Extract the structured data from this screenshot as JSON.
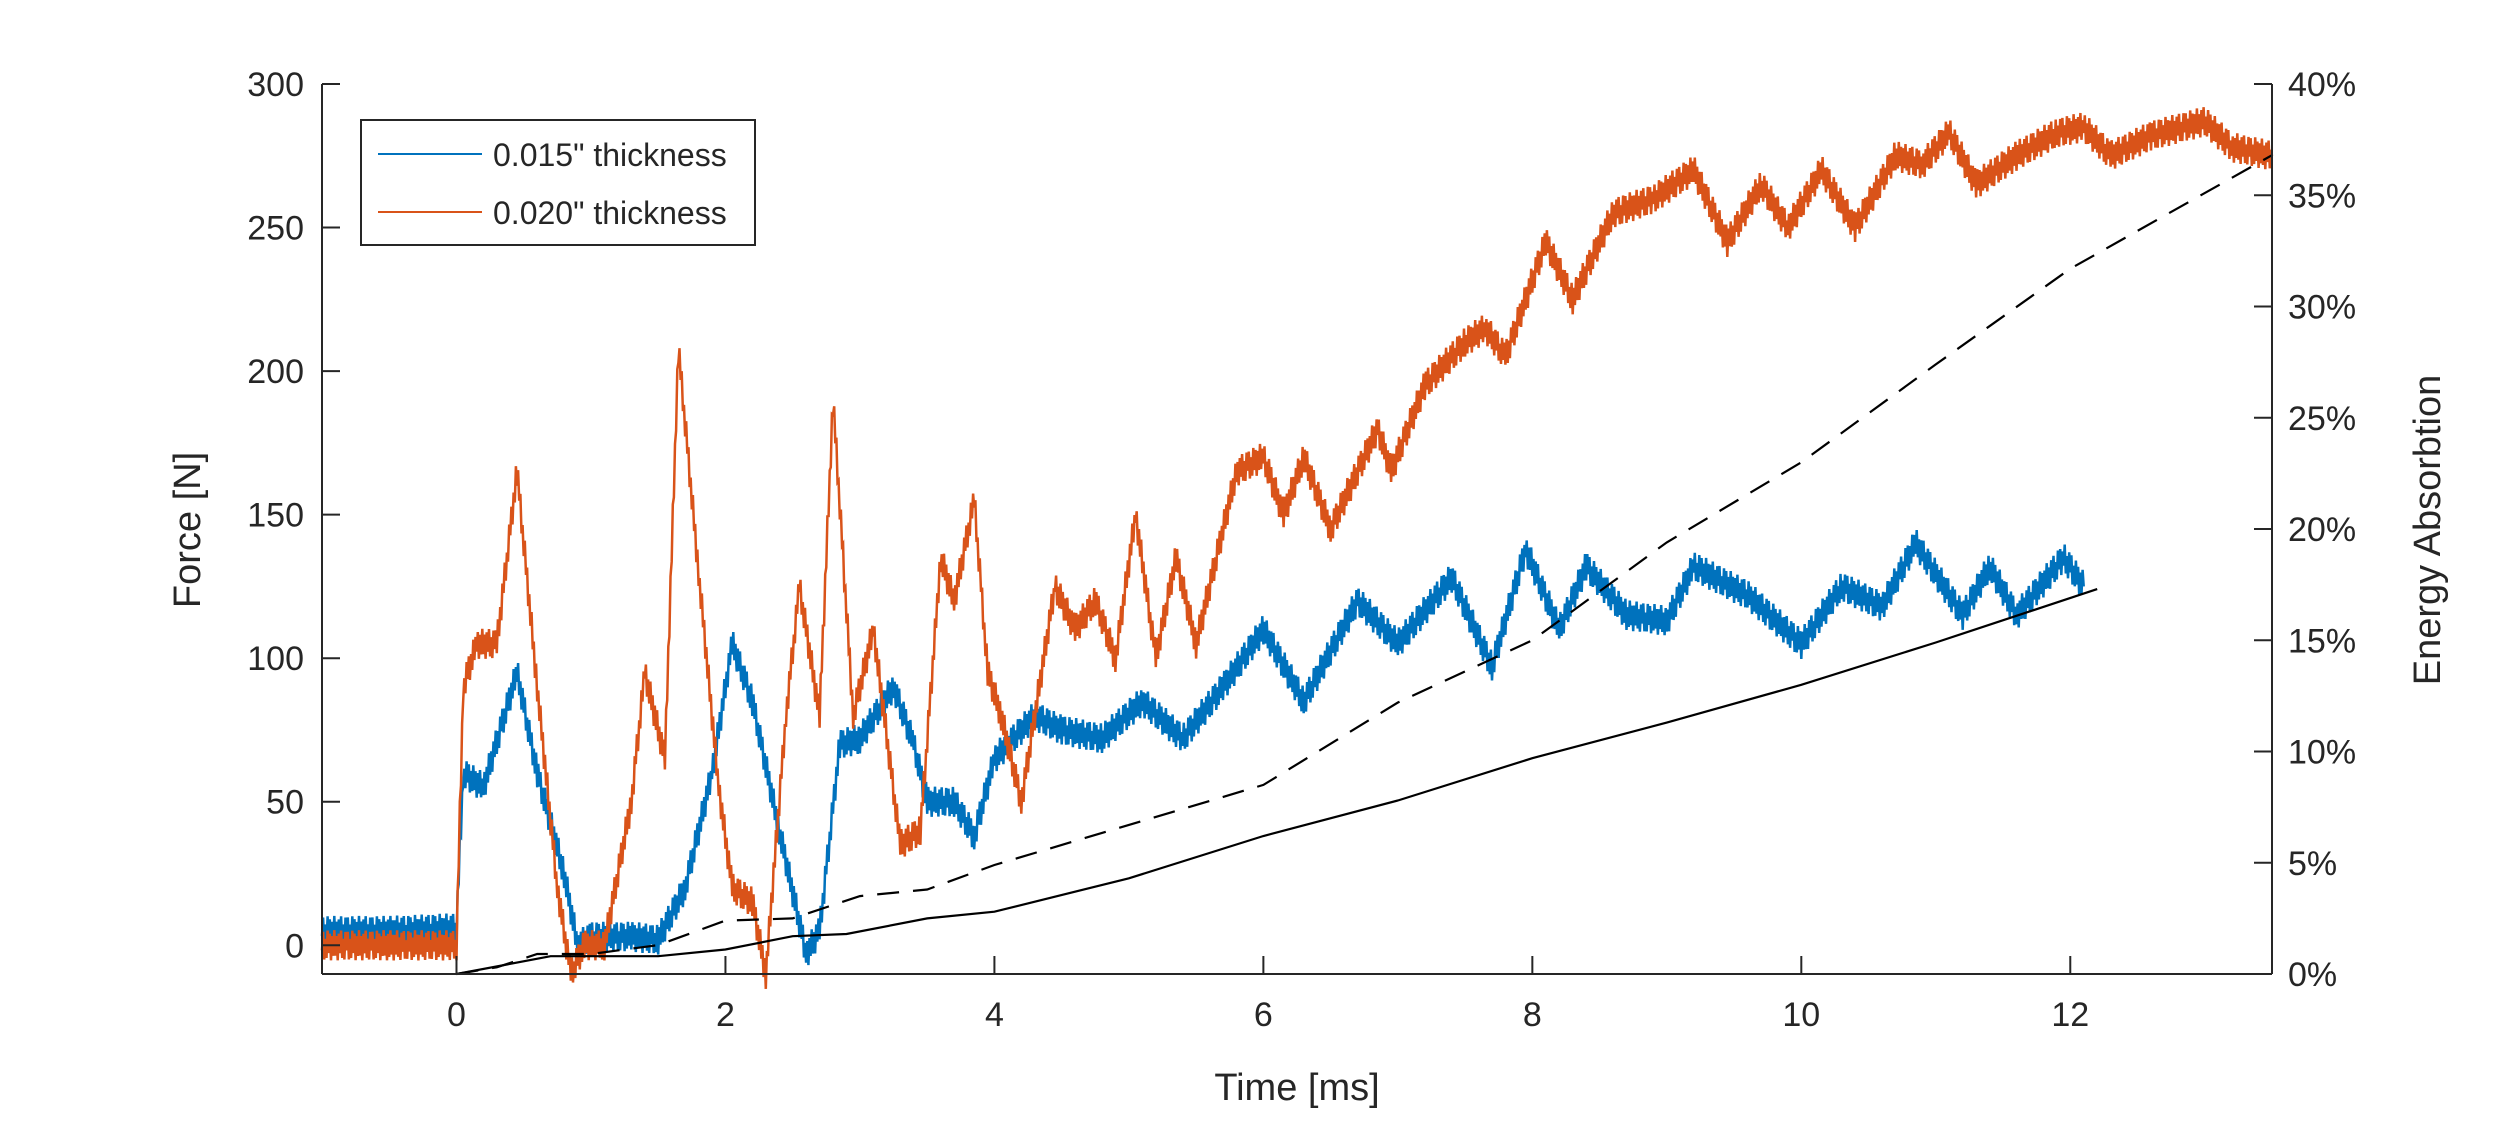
{
  "chart_data": {
    "type": "line",
    "xlabel": "Time [ms]",
    "ylabel": "Force [N]",
    "y2label": "Energy Absorbtion",
    "xlim": [
      -1,
      13.5
    ],
    "ylim": [
      -10,
      300
    ],
    "y2lim": [
      0,
      40
    ],
    "xticks": [
      0,
      2,
      4,
      6,
      8,
      10,
      12
    ],
    "yticks": [
      0,
      50,
      100,
      150,
      200,
      250,
      300
    ],
    "y2ticks": [
      "0%",
      "5%",
      "10%",
      "15%",
      "20%",
      "25%",
      "30%",
      "35%",
      "40%"
    ],
    "grid": false,
    "legend_placement": "top-left",
    "series": [
      {
        "name": "0.015\" thickness",
        "axis": "left",
        "color": "#0072BD",
        "style": "solid",
        "x": [
          -1,
          -0.5,
          0,
          0.05,
          0.2,
          0.45,
          0.6,
          0.8,
          0.9,
          1.0,
          1.3,
          1.5,
          1.7,
          1.9,
          2.05,
          2.2,
          2.4,
          2.6,
          2.7,
          2.85,
          3.0,
          3.25,
          3.4,
          3.5,
          3.7,
          3.85,
          4.0,
          4.3,
          4.5,
          4.8,
          5.1,
          5.4,
          5.7,
          6.0,
          6.3,
          6.7,
          7.0,
          7.4,
          7.7,
          7.95,
          8.2,
          8.4,
          8.7,
          9.0,
          9.2,
          9.6,
          10.0,
          10.3,
          10.6,
          10.85,
          11.2,
          11.4,
          11.6,
          11.95,
          12.1
        ],
        "y": [
          5,
          5,
          6,
          60,
          55,
          95,
          60,
          25,
          0,
          3,
          3,
          2,
          20,
          60,
          105,
          85,
          40,
          -3,
          5,
          70,
          72,
          90,
          70,
          50,
          50,
          38,
          65,
          80,
          75,
          72,
          85,
          72,
          90,
          110,
          85,
          120,
          105,
          128,
          97,
          138,
          110,
          132,
          115,
          113,
          132,
          122,
          105,
          125,
          118,
          140,
          115,
          132,
          115,
          135,
          125
        ]
      },
      {
        "name": "0.020\" thickness",
        "axis": "left",
        "color": "#D95319",
        "style": "solid",
        "x": [
          -1,
          -0.5,
          0,
          0.05,
          0.15,
          0.3,
          0.45,
          0.6,
          0.75,
          0.85,
          0.95,
          1.1,
          1.3,
          1.4,
          1.55,
          1.65,
          1.8,
          1.95,
          2.05,
          2.2,
          2.3,
          2.45,
          2.55,
          2.7,
          2.8,
          2.95,
          3.1,
          3.3,
          3.45,
          3.6,
          3.7,
          3.85,
          3.95,
          4.05,
          4.2,
          4.45,
          4.6,
          4.75,
          4.9,
          5.05,
          5.2,
          5.35,
          5.5,
          5.8,
          6.0,
          6.15,
          6.3,
          6.5,
          6.85,
          6.95,
          7.2,
          7.5,
          7.65,
          7.8,
          8.1,
          8.3,
          8.6,
          8.9,
          9.2,
          9.45,
          9.7,
          9.9,
          10.15,
          10.4,
          10.7,
          10.9,
          11.1,
          11.3,
          11.6,
          11.9,
          12.1,
          12.3,
          12.6,
          13.0,
          13.2,
          13.5
        ],
        "y": [
          0,
          0,
          0,
          90,
          105,
          105,
          165,
          90,
          20,
          -10,
          0,
          0,
          50,
          95,
          65,
          208,
          130,
          55,
          20,
          15,
          -10,
          80,
          125,
          80,
          190,
          80,
          110,
          35,
          40,
          135,
          120,
          155,
          95,
          80,
          50,
          125,
          110,
          120,
          100,
          150,
          100,
          135,
          105,
          165,
          170,
          150,
          170,
          145,
          180,
          165,
          195,
          210,
          215,
          205,
          245,
          225,
          255,
          260,
          270,
          245,
          265,
          250,
          270,
          250,
          275,
          272,
          283,
          265,
          275,
          283,
          285,
          275,
          282,
          287,
          278,
          275
        ]
      },
      {
        "axis": "right",
        "color": "#000000",
        "style": "solid",
        "x": [
          0,
          0.7,
          1.5,
          2,
          2.5,
          2.9,
          3.5,
          4,
          5,
          6,
          7,
          8,
          9,
          10,
          11,
          12.2
        ],
        "y": [
          0,
          0.8,
          0.8,
          1.1,
          1.7,
          1.8,
          2.5,
          2.8,
          4.3,
          6.2,
          7.8,
          9.7,
          11.3,
          13.0,
          14.9,
          17.3
        ]
      },
      {
        "axis": "right",
        "color": "#000000",
        "style": "dashed",
        "x": [
          0,
          0.3,
          0.6,
          1.0,
          1.5,
          2,
          2.5,
          3,
          3.5,
          4,
          6,
          7,
          8,
          9,
          10,
          11,
          12,
          13.5
        ],
        "y": [
          0,
          0.3,
          0.9,
          0.9,
          1.3,
          2.4,
          2.5,
          3.5,
          3.8,
          4.9,
          8.5,
          12.2,
          15,
          19.4,
          23,
          27.4,
          31.7,
          36.8
        ]
      }
    ]
  }
}
